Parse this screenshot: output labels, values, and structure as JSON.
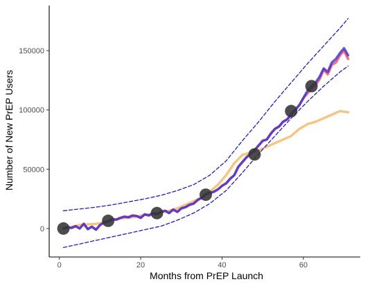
{
  "chart_data": {
    "type": "line",
    "title": "",
    "xlabel": "Months from PrEP Launch",
    "ylabel": "Number of New PrEP Users",
    "xlim": [
      -2.5,
      74
    ],
    "ylim": [
      -24000,
      188000
    ],
    "x_ticks": [
      0,
      20,
      40,
      60
    ],
    "x_tick_labels": [
      "0",
      "20",
      "40",
      "60"
    ],
    "y_ticks": [
      0,
      50000,
      100000,
      150000
    ],
    "y_tick_labels": [
      "0",
      "50000",
      "100000",
      "150000"
    ],
    "grid": false,
    "legend": "none",
    "series": [
      {
        "kind": "line",
        "color": "#f5b65f",
        "x": [
          1,
          3,
          5,
          7,
          9,
          11,
          13,
          15,
          17,
          19,
          21,
          23,
          25,
          27,
          29,
          31,
          33,
          35,
          37,
          39,
          41,
          43,
          45,
          47,
          49,
          51,
          53,
          55,
          57,
          59,
          61,
          63,
          65,
          67,
          69,
          71
        ],
        "y": [
          0,
          1500,
          3000,
          3500,
          4000,
          5000,
          7000,
          8500,
          9000,
          10000,
          11500,
          12000,
          13500,
          15000,
          17000,
          20000,
          23000,
          26000,
          31000,
          37000,
          45000,
          55000,
          62000,
          64000,
          66000,
          69000,
          72000,
          75000,
          78000,
          84000,
          88000,
          90000,
          93000,
          96000,
          99000,
          98000
        ]
      },
      {
        "kind": "line",
        "color": "#ff4a4a",
        "x": [
          1,
          2,
          3,
          4,
          5,
          6,
          7,
          8,
          9,
          10,
          11,
          12,
          13,
          14,
          15,
          16,
          17,
          18,
          19,
          20,
          21,
          22,
          23,
          24,
          25,
          26,
          27,
          28,
          29,
          30,
          31,
          32,
          33,
          34,
          35,
          36,
          37,
          38,
          39,
          40,
          41,
          42,
          43,
          44,
          45,
          46,
          47,
          48,
          49,
          50,
          51,
          52,
          53,
          54,
          55,
          56,
          57,
          58,
          59,
          60,
          61,
          62,
          63,
          64,
          65,
          66,
          67,
          68,
          69,
          70,
          71
        ],
        "y": [
          0,
          1000,
          500,
          2000,
          0,
          4000,
          -500,
          1500,
          -1000,
          3000,
          5000,
          6000,
          8000,
          7500,
          9000,
          10000,
          9500,
          11000,
          10500,
          9000,
          12000,
          11000,
          13000,
          12000,
          14000,
          15000,
          13000,
          16000,
          14000,
          17000,
          18000,
          20000,
          21000,
          24000,
          26000,
          29000,
          30000,
          31000,
          33000,
          36000,
          38000,
          42000,
          45000,
          52000,
          56000,
          60000,
          63000,
          66000,
          70000,
          74000,
          75000,
          80000,
          84000,
          86000,
          90000,
          92000,
          96000,
          100000,
          104000,
          110000,
          114000,
          118000,
          121000,
          126000,
          134000,
          130000,
          138000,
          140000,
          146000,
          150000,
          143000
        ]
      },
      {
        "kind": "line",
        "color": "#3a2fe0",
        "x": [
          1,
          2,
          3,
          4,
          5,
          6,
          7,
          8,
          9,
          10,
          11,
          12,
          13,
          14,
          15,
          16,
          17,
          18,
          19,
          20,
          21,
          22,
          23,
          24,
          25,
          26,
          27,
          28,
          29,
          30,
          31,
          32,
          33,
          34,
          35,
          36,
          37,
          38,
          39,
          40,
          41,
          42,
          43,
          44,
          45,
          46,
          47,
          48,
          49,
          50,
          51,
          52,
          53,
          54,
          55,
          56,
          57,
          58,
          59,
          60,
          61,
          62,
          63,
          64,
          65,
          66,
          67,
          68,
          69,
          70,
          71
        ],
        "y": [
          0,
          1000,
          500,
          2000,
          0,
          4000,
          -500,
          1500,
          -1000,
          3000,
          5000,
          6000,
          8000,
          7500,
          9000,
          10000,
          9500,
          11000,
          10500,
          9000,
          12000,
          11000,
          13000,
          12000,
          14000,
          15000,
          13000,
          16000,
          14000,
          17000,
          18000,
          20000,
          21000,
          24000,
          26000,
          29000,
          30000,
          31000,
          33000,
          36000,
          38000,
          42000,
          45000,
          52000,
          56000,
          60000,
          63000,
          66000,
          70000,
          74000,
          75000,
          80000,
          84000,
          86000,
          90000,
          92000,
          96000,
          100000,
          104000,
          110000,
          116000,
          120000,
          123000,
          128000,
          135000,
          132000,
          140000,
          143000,
          148000,
          152000,
          146000
        ]
      },
      {
        "kind": "dashed",
        "color": "#1a1ad6",
        "x": [
          1,
          5,
          9,
          13,
          17,
          21,
          25,
          29,
          33,
          37,
          41,
          45,
          49,
          53,
          57,
          61,
          65,
          69,
          71
        ],
        "y": [
          15000,
          16500,
          18000,
          20000,
          22500,
          25000,
          28000,
          32000,
          37000,
          45000,
          57000,
          74000,
          90000,
          107000,
          123000,
          139000,
          154000,
          169000,
          177000
        ]
      },
      {
        "kind": "dashed",
        "color": "#1a1ad6",
        "x": [
          1,
          5,
          9,
          13,
          17,
          21,
          25,
          29,
          33,
          37,
          41,
          45,
          49,
          53,
          57,
          61,
          65,
          69,
          71
        ],
        "y": [
          -16000,
          -13000,
          -10000,
          -7000,
          -4000,
          -1000,
          2000,
          7000,
          13000,
          21000,
          32000,
          47000,
          63000,
          78000,
          93000,
          107000,
          120000,
          132000,
          137000
        ]
      },
      {
        "kind": "points",
        "color": "#333333",
        "x": [
          1,
          12,
          24,
          36,
          48,
          57,
          62
        ],
        "y": [
          0,
          6500,
          13000,
          28500,
          62500,
          99000,
          120000
        ]
      }
    ]
  }
}
